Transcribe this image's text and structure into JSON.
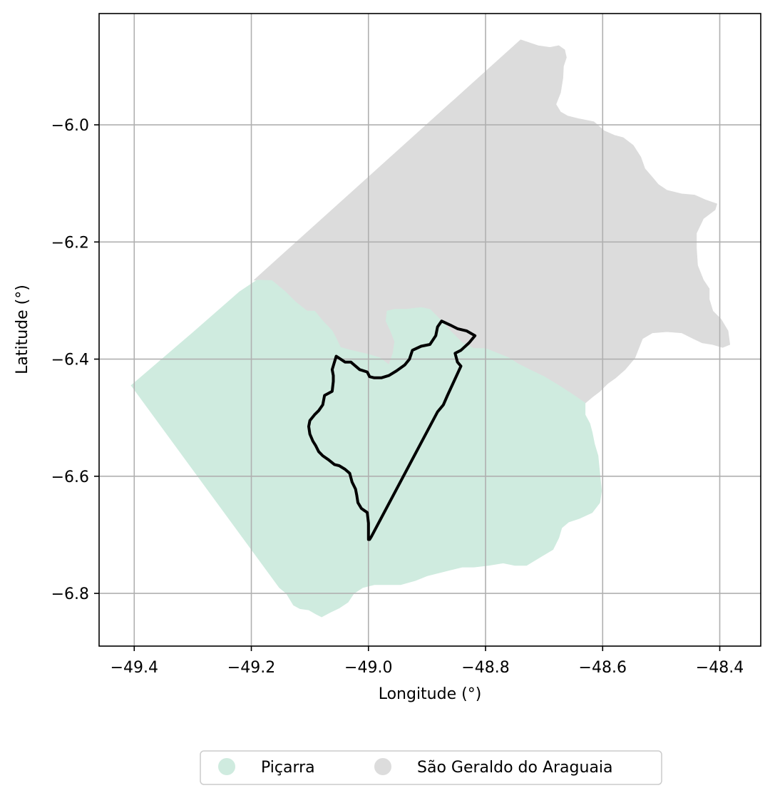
{
  "chart_data": {
    "type": "map",
    "xlabel": "Longitude (°)",
    "ylabel": "Latitude (°)",
    "xlim": [
      -49.46,
      -48.33
    ],
    "ylim": [
      -6.89,
      -5.81
    ],
    "xticks": [
      -49.4,
      -49.2,
      -49.0,
      -48.8,
      -48.6,
      -48.4
    ],
    "xtick_labels": [
      "−49.4",
      "−49.2",
      "−49.0",
      "−48.8",
      "−48.6",
      "−48.4"
    ],
    "yticks": [
      -6.0,
      -6.2,
      -6.4,
      -6.6,
      -6.8
    ],
    "ytick_labels": [
      "−6.0",
      "−6.2",
      "−6.4",
      "−6.6",
      "−6.8"
    ],
    "grid": true,
    "legend_placement": "bottom-center",
    "colors": {
      "picarra": "#cfebdf",
      "sao_geraldo": "#dcdcdc",
      "outline": "#000000",
      "grid": "#b0b0b0"
    },
    "series": [
      {
        "name": "Piçarra",
        "color": "#cfebdf",
        "polygon": [
          [
            -49.405,
            -6.445
          ],
          [
            -49.3,
            -6.355
          ],
          [
            -49.22,
            -6.285
          ],
          [
            -49.19,
            -6.265
          ],
          [
            -49.165,
            -6.266
          ],
          [
            -49.142,
            -6.285
          ],
          [
            -49.125,
            -6.302
          ],
          [
            -49.105,
            -6.318
          ],
          [
            -49.092,
            -6.318
          ],
          [
            -49.078,
            -6.335
          ],
          [
            -49.062,
            -6.352
          ],
          [
            -49.055,
            -6.365
          ],
          [
            -49.048,
            -6.38
          ],
          [
            -49.03,
            -6.385
          ],
          [
            -49.0,
            -6.392
          ],
          [
            -48.98,
            -6.398
          ],
          [
            -48.965,
            -6.41
          ],
          [
            -48.958,
            -6.39
          ],
          [
            -48.955,
            -6.37
          ],
          [
            -48.962,
            -6.352
          ],
          [
            -48.97,
            -6.335
          ],
          [
            -48.968,
            -6.318
          ],
          [
            -48.955,
            -6.315
          ],
          [
            -48.935,
            -6.315
          ],
          [
            -48.91,
            -6.312
          ],
          [
            -48.895,
            -6.315
          ],
          [
            -48.88,
            -6.33
          ],
          [
            -48.86,
            -6.352
          ],
          [
            -48.84,
            -6.372
          ],
          [
            -48.82,
            -6.382
          ],
          [
            -48.8,
            -6.382
          ],
          [
            -48.78,
            -6.39
          ],
          [
            -48.76,
            -6.398
          ],
          [
            -48.745,
            -6.408
          ],
          [
            -48.725,
            -6.418
          ],
          [
            -48.7,
            -6.43
          ],
          [
            -48.675,
            -6.445
          ],
          [
            -48.655,
            -6.458
          ],
          [
            -48.63,
            -6.475
          ],
          [
            -48.63,
            -6.495
          ],
          [
            -48.622,
            -6.51
          ],
          [
            -48.618,
            -6.525
          ],
          [
            -48.614,
            -6.545
          ],
          [
            -48.608,
            -6.565
          ],
          [
            -48.606,
            -6.585
          ],
          [
            -48.604,
            -6.605
          ],
          [
            -48.602,
            -6.625
          ],
          [
            -48.605,
            -6.645
          ],
          [
            -48.618,
            -6.662
          ],
          [
            -48.64,
            -6.672
          ],
          [
            -48.658,
            -6.678
          ],
          [
            -48.67,
            -6.688
          ],
          [
            -48.675,
            -6.705
          ],
          [
            -48.685,
            -6.725
          ],
          [
            -48.71,
            -6.74
          ],
          [
            -48.73,
            -6.752
          ],
          [
            -48.75,
            -6.752
          ],
          [
            -48.77,
            -6.748
          ],
          [
            -48.795,
            -6.752
          ],
          [
            -48.82,
            -6.755
          ],
          [
            -48.84,
            -6.755
          ],
          [
            -48.86,
            -6.76
          ],
          [
            -48.88,
            -6.765
          ],
          [
            -48.9,
            -6.77
          ],
          [
            -48.92,
            -6.778
          ],
          [
            -48.945,
            -6.785
          ],
          [
            -48.97,
            -6.785
          ],
          [
            -48.99,
            -6.785
          ],
          [
            -49.01,
            -6.79
          ],
          [
            -49.025,
            -6.8
          ],
          [
            -49.035,
            -6.815
          ],
          [
            -49.05,
            -6.825
          ],
          [
            -49.065,
            -6.832
          ],
          [
            -49.08,
            -6.84
          ],
          [
            -49.09,
            -6.835
          ],
          [
            -49.102,
            -6.828
          ],
          [
            -49.117,
            -6.826
          ],
          [
            -49.128,
            -6.82
          ],
          [
            -49.14,
            -6.8
          ],
          [
            -49.152,
            -6.79
          ]
        ]
      },
      {
        "name": "São Geraldo do Araguaia",
        "color": "#dcdcdc",
        "polygon": [
          [
            -49.195,
            -6.265
          ],
          [
            -48.74,
            -5.855
          ],
          [
            -48.725,
            -5.86
          ],
          [
            -48.71,
            -5.865
          ],
          [
            -48.69,
            -5.868
          ],
          [
            -48.675,
            -5.865
          ],
          [
            -48.665,
            -5.872
          ],
          [
            -48.662,
            -5.885
          ],
          [
            -48.667,
            -5.9
          ],
          [
            -48.668,
            -5.92
          ],
          [
            -48.672,
            -5.945
          ],
          [
            -48.68,
            -5.965
          ],
          [
            -48.672,
            -5.978
          ],
          [
            -48.66,
            -5.985
          ],
          [
            -48.64,
            -5.99
          ],
          [
            -48.615,
            -5.995
          ],
          [
            -48.598,
            -6.01
          ],
          [
            -48.58,
            -6.018
          ],
          [
            -48.565,
            -6.022
          ],
          [
            -48.548,
            -6.035
          ],
          [
            -48.535,
            -6.055
          ],
          [
            -48.528,
            -6.075
          ],
          [
            -48.515,
            -6.09
          ],
          [
            -48.505,
            -6.102
          ],
          [
            -48.49,
            -6.112
          ],
          [
            -48.465,
            -6.118
          ],
          [
            -48.443,
            -6.12
          ],
          [
            -48.425,
            -6.128
          ],
          [
            -48.405,
            -6.135
          ],
          [
            -48.408,
            -6.145
          ],
          [
            -48.428,
            -6.16
          ],
          [
            -48.44,
            -6.185
          ],
          [
            -48.44,
            -6.21
          ],
          [
            -48.438,
            -6.24
          ],
          [
            -48.428,
            -6.265
          ],
          [
            -48.418,
            -6.28
          ],
          [
            -48.418,
            -6.298
          ],
          [
            -48.412,
            -6.318
          ],
          [
            -48.398,
            -6.332
          ],
          [
            -48.386,
            -6.352
          ],
          [
            -48.383,
            -6.375
          ],
          [
            -48.395,
            -6.38
          ],
          [
            -48.412,
            -6.375
          ],
          [
            -48.43,
            -6.372
          ],
          [
            -48.445,
            -6.365
          ],
          [
            -48.465,
            -6.355
          ],
          [
            -48.49,
            -6.353
          ],
          [
            -48.515,
            -6.355
          ],
          [
            -48.532,
            -6.365
          ],
          [
            -48.538,
            -6.38
          ],
          [
            -48.545,
            -6.398
          ],
          [
            -48.562,
            -6.418
          ],
          [
            -48.578,
            -6.432
          ],
          [
            -48.592,
            -6.442
          ],
          [
            -48.605,
            -6.455
          ],
          [
            -48.618,
            -6.465
          ],
          [
            -48.63,
            -6.475
          ],
          [
            -48.655,
            -6.458
          ],
          [
            -48.675,
            -6.445
          ],
          [
            -48.7,
            -6.43
          ],
          [
            -48.725,
            -6.418
          ],
          [
            -48.745,
            -6.408
          ],
          [
            -48.76,
            -6.398
          ],
          [
            -48.78,
            -6.39
          ],
          [
            -48.8,
            -6.382
          ],
          [
            -48.82,
            -6.382
          ],
          [
            -48.84,
            -6.372
          ],
          [
            -48.86,
            -6.352
          ],
          [
            -48.88,
            -6.33
          ],
          [
            -48.895,
            -6.315
          ],
          [
            -48.91,
            -6.312
          ],
          [
            -48.935,
            -6.315
          ],
          [
            -48.955,
            -6.315
          ],
          [
            -48.968,
            -6.318
          ],
          [
            -48.97,
            -6.335
          ],
          [
            -48.962,
            -6.352
          ],
          [
            -48.955,
            -6.37
          ],
          [
            -48.958,
            -6.39
          ],
          [
            -48.965,
            -6.41
          ],
          [
            -48.98,
            -6.398
          ],
          [
            -49.0,
            -6.392
          ],
          [
            -49.03,
            -6.385
          ],
          [
            -49.048,
            -6.38
          ],
          [
            -49.055,
            -6.365
          ],
          [
            -49.062,
            -6.352
          ],
          [
            -49.078,
            -6.335
          ],
          [
            -49.092,
            -6.318
          ],
          [
            -49.105,
            -6.318
          ],
          [
            -49.125,
            -6.302
          ],
          [
            -49.142,
            -6.285
          ],
          [
            -49.165,
            -6.266
          ]
        ]
      }
    ],
    "outline": {
      "color": "#000000",
      "polygon": [
        [
          -48.875,
          -6.335
        ],
        [
          -48.86,
          -6.342
        ],
        [
          -48.848,
          -6.348
        ],
        [
          -48.832,
          -6.352
        ],
        [
          -48.818,
          -6.36
        ],
        [
          -48.828,
          -6.372
        ],
        [
          -48.842,
          -6.385
        ],
        [
          -48.852,
          -6.39
        ],
        [
          -48.848,
          -6.405
        ],
        [
          -48.842,
          -6.412
        ],
        [
          -48.865,
          -6.462
        ],
        [
          -48.872,
          -6.478
        ],
        [
          -48.882,
          -6.49
        ],
        [
          -48.995,
          -6.703
        ],
        [
          -48.998,
          -6.708
        ],
        [
          -49.0,
          -6.708
        ],
        [
          -49.0,
          -6.68
        ],
        [
          -49.002,
          -6.662
        ],
        [
          -49.012,
          -6.655
        ],
        [
          -49.018,
          -6.645
        ],
        [
          -49.02,
          -6.632
        ],
        [
          -49.022,
          -6.622
        ],
        [
          -49.028,
          -6.61
        ],
        [
          -49.032,
          -6.595
        ],
        [
          -49.04,
          -6.588
        ],
        [
          -49.05,
          -6.582
        ],
        [
          -49.058,
          -6.58
        ],
        [
          -49.068,
          -6.572
        ],
        [
          -49.078,
          -6.565
        ],
        [
          -49.085,
          -6.558
        ],
        [
          -49.09,
          -6.548
        ],
        [
          -49.095,
          -6.54
        ],
        [
          -49.1,
          -6.528
        ],
        [
          -49.102,
          -6.515
        ],
        [
          -49.1,
          -6.505
        ],
        [
          -49.092,
          -6.495
        ],
        [
          -49.085,
          -6.488
        ],
        [
          -49.078,
          -6.478
        ],
        [
          -49.075,
          -6.462
        ],
        [
          -49.062,
          -6.455
        ],
        [
          -49.06,
          -6.438
        ],
        [
          -49.06,
          -6.428
        ],
        [
          -49.062,
          -6.418
        ],
        [
          -49.058,
          -6.405
        ],
        [
          -49.055,
          -6.395
        ],
        [
          -49.04,
          -6.405
        ],
        [
          -49.03,
          -6.405
        ],
        [
          -49.015,
          -6.418
        ],
        [
          -49.002,
          -6.422
        ],
        [
          -48.998,
          -6.43
        ],
        [
          -48.99,
          -6.432
        ],
        [
          -48.978,
          -6.432
        ],
        [
          -48.965,
          -6.428
        ],
        [
          -48.952,
          -6.42
        ],
        [
          -48.938,
          -6.41
        ],
        [
          -48.93,
          -6.4
        ],
        [
          -48.925,
          -6.385
        ],
        [
          -48.91,
          -6.378
        ],
        [
          -48.895,
          -6.375
        ],
        [
          -48.885,
          -6.36
        ],
        [
          -48.882,
          -6.345
        ]
      ]
    }
  },
  "legend": {
    "items": [
      {
        "label": "Piçarra",
        "color": "#cfebdf"
      },
      {
        "label": "São Geraldo do Araguaia",
        "color": "#dcdcdc"
      }
    ]
  }
}
